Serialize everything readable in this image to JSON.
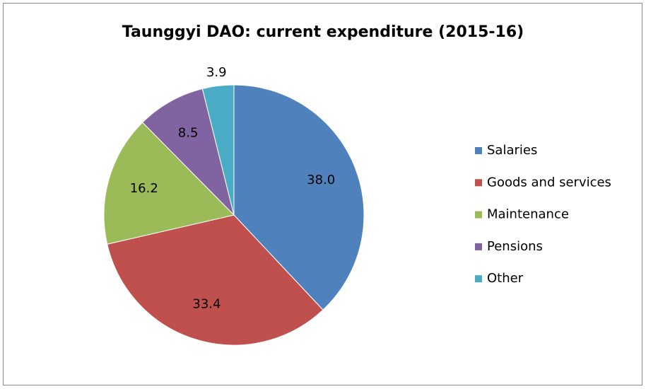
{
  "chart_data": {
    "type": "pie",
    "title": "Taunggyi DAO: current expenditure (2015-16)",
    "categories": [
      "Salaries",
      "Goods and services",
      "Maintenance",
      "Pensions",
      "Other"
    ],
    "values": [
      38.0,
      33.4,
      16.2,
      8.5,
      3.9
    ],
    "value_labels": [
      "38.0",
      "33.4",
      "16.2",
      "8.5",
      "3.9"
    ],
    "colors": [
      "#4f81bd",
      "#c0504d",
      "#9bbb59",
      "#8064a2",
      "#4bacc6"
    ],
    "legend": "right"
  }
}
